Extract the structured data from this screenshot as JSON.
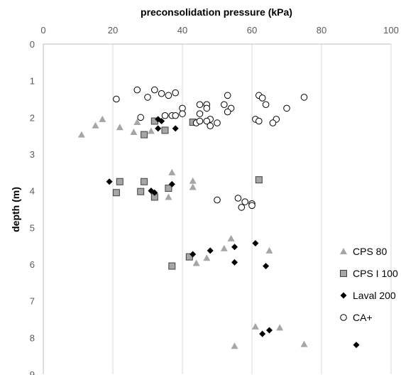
{
  "chart_data": {
    "type": "scatter",
    "xlabel": "preconsolidation pressure (kPa)",
    "ylabel": "depth (m)",
    "xlim": [
      0,
      100
    ],
    "ylim": [
      0,
      9
    ],
    "x_axis_position": "top",
    "y_axis_reversed": true,
    "xticks": [
      "0",
      "20",
      "40",
      "60",
      "80",
      "100"
    ],
    "yticks": [
      "0",
      "1",
      "2",
      "3",
      "4",
      "5",
      "6",
      "7",
      "8",
      "9"
    ],
    "grid": "vertical",
    "legend_position": "bottom-right",
    "series": [
      {
        "name": "CPS 80",
        "marker": "triangle",
        "color": "#a6a6a6",
        "points": [
          [
            11,
            2.47
          ],
          [
            15,
            2.22
          ],
          [
            17,
            2.05
          ],
          [
            22,
            2.27
          ],
          [
            26,
            2.4
          ],
          [
            27,
            2.13
          ],
          [
            31,
            2.37
          ],
          [
            37,
            3.5
          ],
          [
            43,
            3.73
          ],
          [
            43,
            3.9
          ],
          [
            36,
            4.17
          ],
          [
            54,
            5.3
          ],
          [
            52,
            5.57
          ],
          [
            65,
            5.63
          ],
          [
            47,
            5.83
          ],
          [
            44,
            5.97
          ],
          [
            61,
            7.7
          ],
          [
            68,
            7.73
          ],
          [
            75,
            8.18
          ],
          [
            55,
            8.23
          ]
        ]
      },
      {
        "name": "CPS I 100",
        "marker": "square",
        "color": "#a6a6a6",
        "points": [
          [
            32,
            2.1
          ],
          [
            43,
            2.13
          ],
          [
            35,
            2.35
          ],
          [
            29,
            2.47
          ],
          [
            22,
            3.75
          ],
          [
            29,
            3.75
          ],
          [
            62,
            3.7
          ],
          [
            36,
            3.93
          ],
          [
            28,
            4.02
          ],
          [
            21,
            4.05
          ],
          [
            32,
            4.17
          ],
          [
            42,
            5.8
          ],
          [
            37,
            6.05
          ]
        ]
      },
      {
        "name": "Laval 200",
        "marker": "diamond",
        "color": "#000000",
        "points": [
          [
            33,
            2.05
          ],
          [
            34,
            2.1
          ],
          [
            33,
            2.3
          ],
          [
            38,
            2.3
          ],
          [
            19,
            3.75
          ],
          [
            37,
            3.82
          ],
          [
            31,
            4.0
          ],
          [
            32,
            4.05
          ],
          [
            61,
            5.43
          ],
          [
            55,
            5.53
          ],
          [
            48,
            5.63
          ],
          [
            43,
            5.73
          ],
          [
            55,
            5.95
          ],
          [
            64,
            6.05
          ],
          [
            65,
            7.8
          ],
          [
            63,
            7.9
          ],
          [
            90,
            8.2
          ]
        ]
      },
      {
        "name": "CA+",
        "marker": "circle",
        "color": "#000000",
        "points": [
          [
            27,
            1.25
          ],
          [
            32,
            1.25
          ],
          [
            38,
            1.33
          ],
          [
            34,
            1.35
          ],
          [
            36,
            1.4
          ],
          [
            30,
            1.45
          ],
          [
            21,
            1.5
          ],
          [
            53,
            1.4
          ],
          [
            62,
            1.4
          ],
          [
            63,
            1.47
          ],
          [
            75,
            1.45
          ],
          [
            64,
            1.65
          ],
          [
            70,
            1.75
          ],
          [
            40,
            1.75
          ],
          [
            45,
            1.65
          ],
          [
            47,
            1.65
          ],
          [
            47,
            1.75
          ],
          [
            52,
            1.65
          ],
          [
            54,
            1.75
          ],
          [
            53,
            1.85
          ],
          [
            35,
            1.95
          ],
          [
            37,
            1.95
          ],
          [
            38,
            1.95
          ],
          [
            40,
            1.9
          ],
          [
            45,
            1.9
          ],
          [
            48,
            2.05
          ],
          [
            47,
            2.1
          ],
          [
            50,
            2.15
          ],
          [
            44,
            2.15
          ],
          [
            45,
            2.1
          ],
          [
            48,
            2.23
          ],
          [
            28,
            2.0
          ],
          [
            61,
            2.05
          ],
          [
            62,
            2.1
          ],
          [
            67,
            2.05
          ],
          [
            66,
            2.15
          ],
          [
            50,
            4.25
          ],
          [
            56,
            4.2
          ],
          [
            58,
            4.3
          ],
          [
            60,
            4.35
          ],
          [
            60,
            4.4
          ],
          [
            57,
            4.45
          ]
        ]
      }
    ]
  }
}
